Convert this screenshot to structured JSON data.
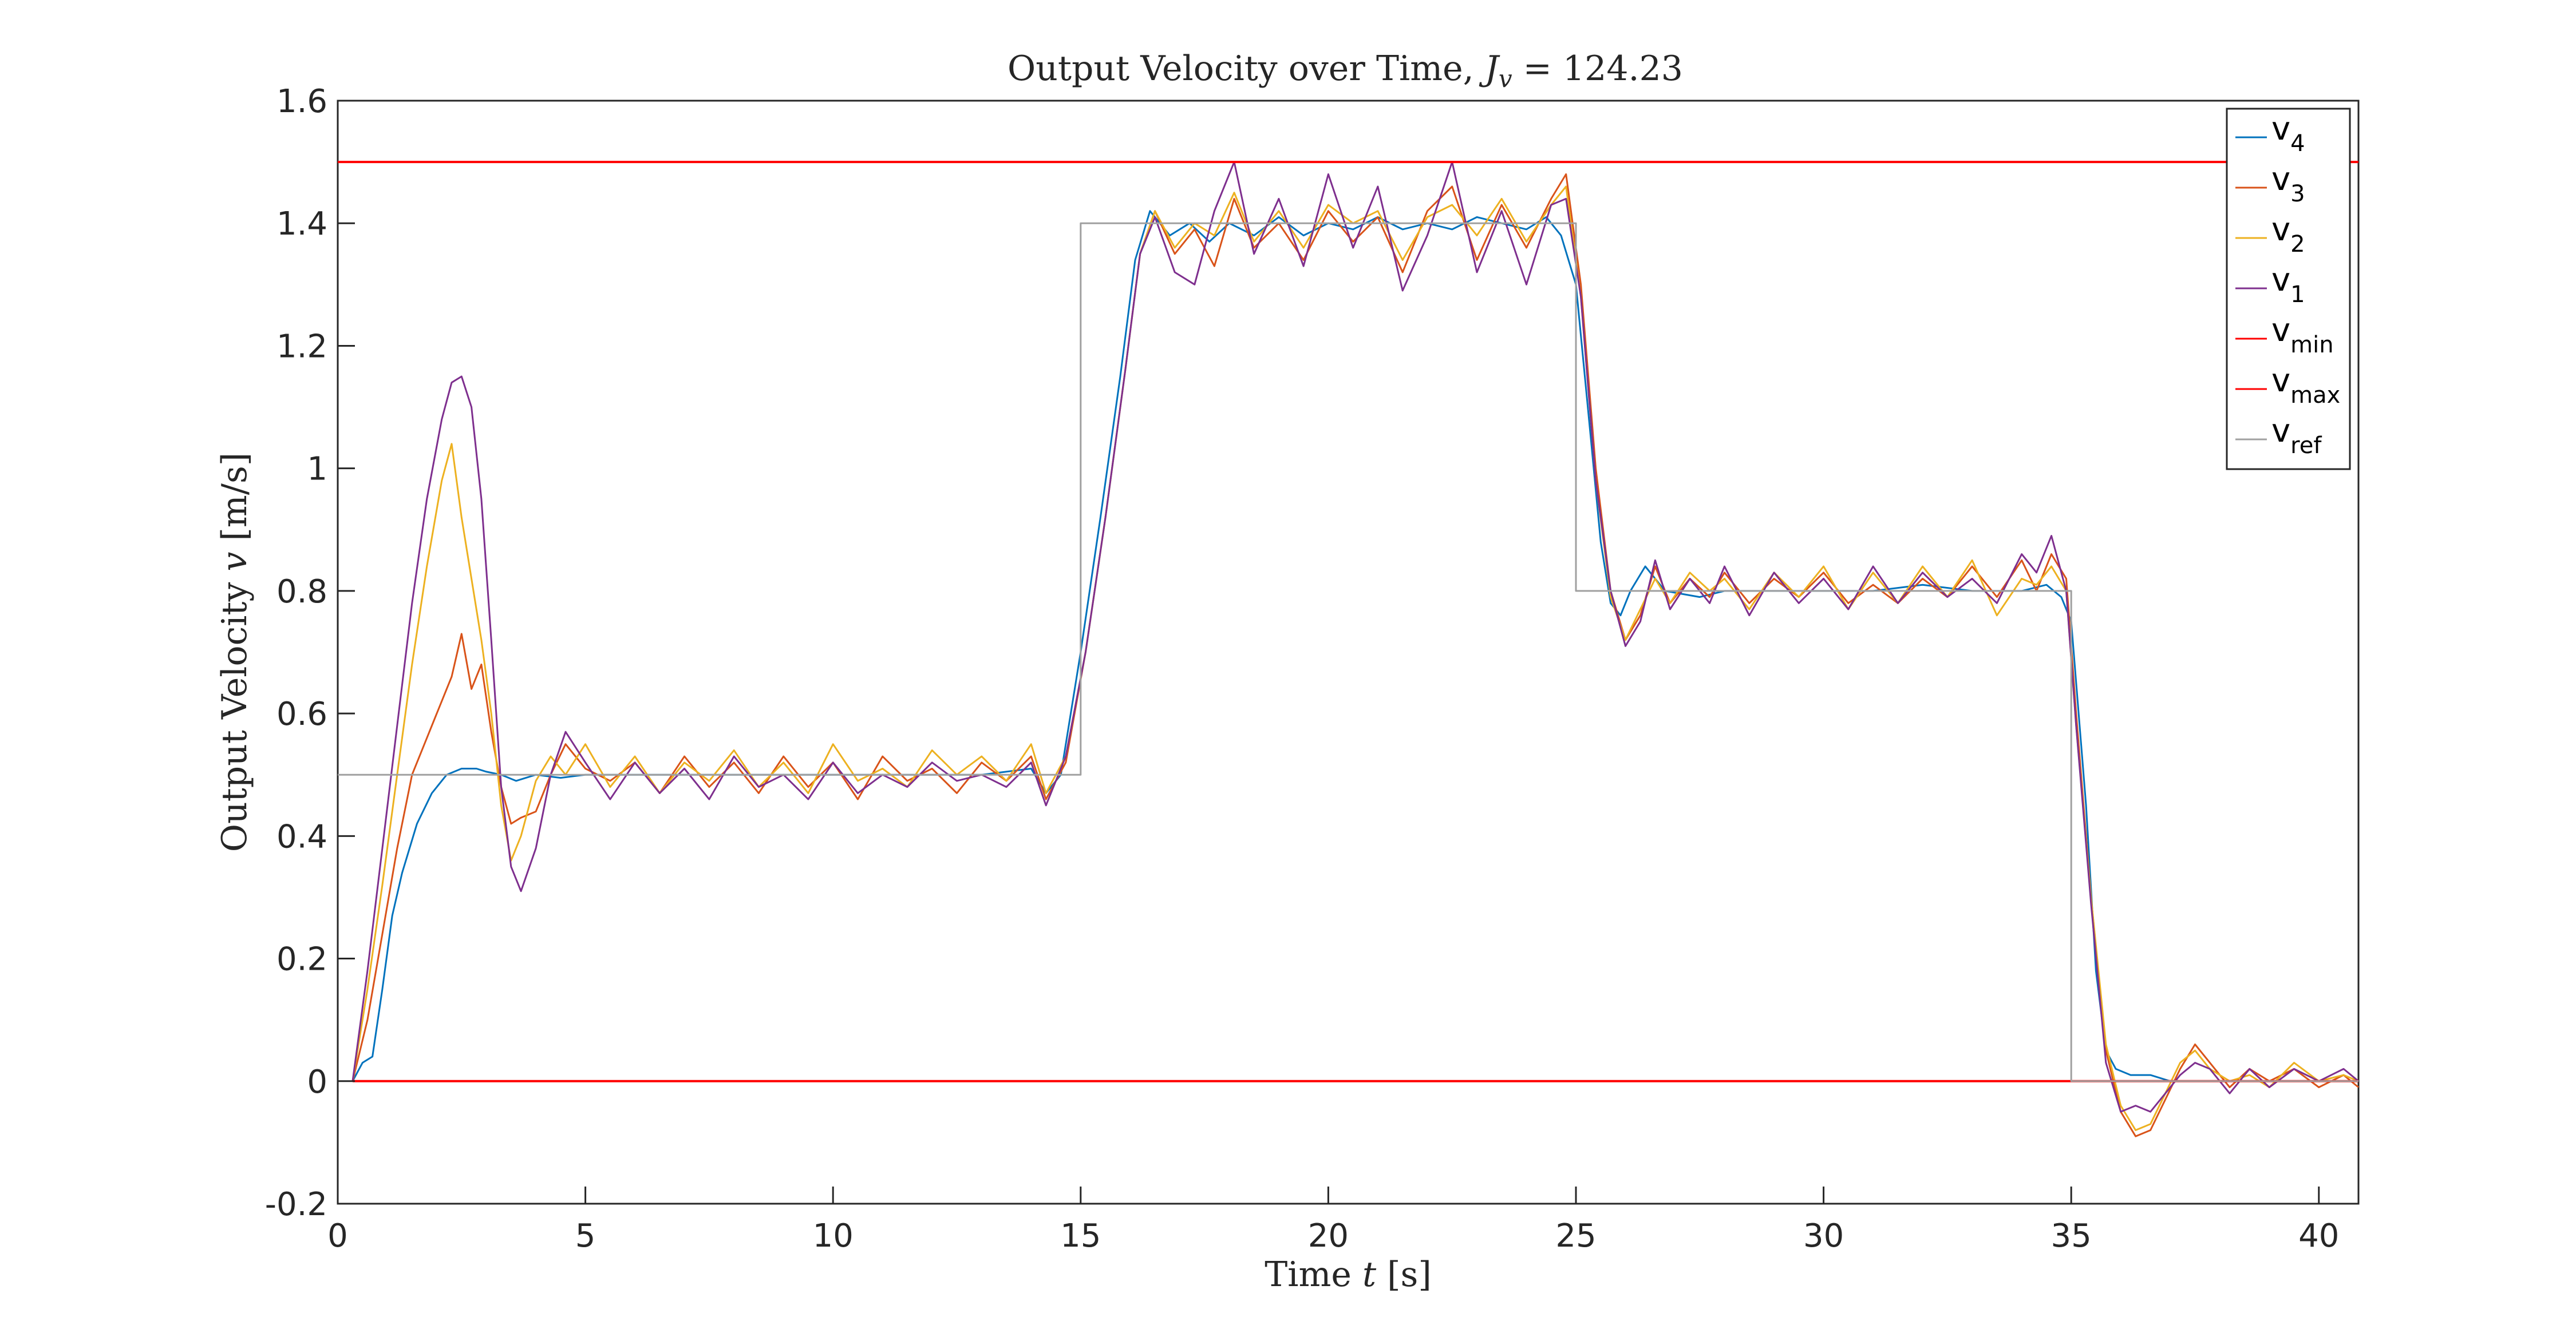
{
  "chart_data": {
    "type": "line",
    "title": {
      "prefix": "Output Velocity over Time, ",
      "var": "J",
      "var_sub": "v",
      "suffix": " = 124.23"
    },
    "xlabel": {
      "prefix": "Time ",
      "var": "t",
      "unit": " [s]"
    },
    "ylabel": {
      "prefix": "Output Velocity ",
      "var": "v",
      "unit": " [m/s]"
    },
    "xlim": [
      0,
      40.8
    ],
    "ylim": [
      -0.2,
      1.6
    ],
    "x_ticks": [
      0,
      5,
      10,
      15,
      20,
      25,
      30,
      35,
      40
    ],
    "x_tick_labels": [
      "0",
      "5",
      "10",
      "15",
      "20",
      "25",
      "30",
      "35",
      "40"
    ],
    "y_ticks": [
      -0.2,
      0,
      0.2,
      0.4,
      0.6,
      0.8,
      1,
      1.2,
      1.4,
      1.6
    ],
    "y_tick_labels": [
      "-0.2",
      "0",
      "0.2",
      "0.4",
      "0.6",
      "0.8",
      "1",
      "1.2",
      "1.4",
      "1.6"
    ],
    "grid": false,
    "legend_position": "top-right",
    "series": [
      {
        "name": "v",
        "sub": "4",
        "color": "#0072BD",
        "x": [
          0.3,
          0.5,
          0.7,
          0.9,
          1.1,
          1.3,
          1.6,
          1.9,
          2.2,
          2.5,
          2.8,
          3.0,
          3.3,
          3.6,
          4.0,
          4.5,
          5.0,
          6,
          7,
          8,
          9,
          10,
          11,
          12,
          13,
          14,
          14.3,
          14.6,
          15.0,
          15.4,
          15.8,
          16.1,
          16.4,
          16.8,
          17.2,
          17.6,
          18,
          18.5,
          19,
          19.5,
          20,
          20.5,
          21,
          21.5,
          22,
          22.5,
          23,
          23.5,
          24,
          24.4,
          24.7,
          25.0,
          25.3,
          25.5,
          25.7,
          25.9,
          26.1,
          26.4,
          26.8,
          27.5,
          28,
          29,
          30,
          31,
          32,
          33,
          34,
          34.5,
          34.8,
          35.0,
          35.3,
          35.5,
          35.7,
          35.9,
          36.2,
          36.6,
          37,
          38,
          39,
          40,
          40.8
        ],
        "y": [
          0,
          0.03,
          0.04,
          0.15,
          0.27,
          0.34,
          0.42,
          0.47,
          0.5,
          0.51,
          0.51,
          0.505,
          0.5,
          0.49,
          0.5,
          0.495,
          0.5,
          0.5,
          0.5,
          0.5,
          0.5,
          0.5,
          0.5,
          0.5,
          0.5,
          0.51,
          0.47,
          0.5,
          0.7,
          0.92,
          1.15,
          1.34,
          1.42,
          1.38,
          1.4,
          1.37,
          1.4,
          1.38,
          1.41,
          1.38,
          1.4,
          1.39,
          1.41,
          1.39,
          1.4,
          1.39,
          1.41,
          1.4,
          1.39,
          1.41,
          1.38,
          1.3,
          1.05,
          0.88,
          0.78,
          0.76,
          0.8,
          0.84,
          0.8,
          0.79,
          0.8,
          0.8,
          0.8,
          0.8,
          0.81,
          0.8,
          0.8,
          0.81,
          0.79,
          0.75,
          0.45,
          0.18,
          0.05,
          0.02,
          0.01,
          0.01,
          0.0,
          0.0,
          0.0,
          0.0,
          0.0
        ]
      },
      {
        "name": "v",
        "sub": "3",
        "color": "#D95319",
        "x": [
          0.3,
          0.6,
          0.9,
          1.2,
          1.5,
          1.8,
          2.0,
          2.3,
          2.5,
          2.7,
          2.9,
          3.1,
          3.3,
          3.5,
          3.7,
          4.0,
          4.3,
          4.6,
          5.0,
          5.5,
          6,
          6.5,
          7,
          7.5,
          8,
          8.5,
          9,
          9.5,
          10,
          10.5,
          11,
          11.5,
          12,
          12.5,
          13,
          13.5,
          14,
          14.3,
          14.7,
          15.1,
          15.5,
          15.9,
          16.2,
          16.5,
          16.9,
          17.3,
          17.7,
          18.1,
          18.5,
          19,
          19.5,
          20,
          20.5,
          21,
          21.5,
          22,
          22.5,
          23,
          23.5,
          24,
          24.5,
          24.8,
          25.1,
          25.4,
          25.7,
          26.0,
          26.3,
          26.6,
          26.9,
          27.3,
          27.7,
          28,
          28.5,
          29,
          29.5,
          30,
          30.5,
          31,
          31.5,
          32,
          32.5,
          33,
          33.5,
          34,
          34.3,
          34.6,
          34.9,
          35.1,
          35.4,
          35.7,
          36.0,
          36.3,
          36.6,
          36.9,
          37.2,
          37.5,
          37.8,
          38.2,
          38.6,
          39,
          39.5,
          40,
          40.5,
          40.8
        ],
        "y": [
          0,
          0.1,
          0.24,
          0.38,
          0.5,
          0.56,
          0.6,
          0.66,
          0.73,
          0.64,
          0.68,
          0.57,
          0.48,
          0.42,
          0.43,
          0.44,
          0.5,
          0.55,
          0.51,
          0.49,
          0.52,
          0.47,
          0.53,
          0.48,
          0.52,
          0.47,
          0.53,
          0.48,
          0.52,
          0.46,
          0.53,
          0.49,
          0.51,
          0.47,
          0.52,
          0.49,
          0.53,
          0.46,
          0.52,
          0.7,
          0.92,
          1.16,
          1.35,
          1.42,
          1.35,
          1.39,
          1.33,
          1.44,
          1.36,
          1.4,
          1.34,
          1.42,
          1.37,
          1.41,
          1.32,
          1.42,
          1.46,
          1.34,
          1.43,
          1.36,
          1.44,
          1.48,
          1.3,
          1.0,
          0.8,
          0.72,
          0.76,
          0.84,
          0.78,
          0.82,
          0.79,
          0.83,
          0.78,
          0.82,
          0.79,
          0.83,
          0.78,
          0.81,
          0.78,
          0.82,
          0.79,
          0.84,
          0.79,
          0.85,
          0.8,
          0.86,
          0.82,
          0.6,
          0.3,
          0.05,
          -0.05,
          -0.09,
          -0.08,
          -0.03,
          0.02,
          0.06,
          0.03,
          -0.01,
          0.02,
          0.0,
          0.02,
          -0.01,
          0.01,
          -0.01
        ]
      },
      {
        "name": "v",
        "sub": "2",
        "color": "#EDB120",
        "x": [
          0.3,
          0.6,
          0.9,
          1.2,
          1.5,
          1.8,
          2.1,
          2.3,
          2.5,
          2.7,
          2.9,
          3.1,
          3.3,
          3.5,
          3.7,
          4.0,
          4.3,
          4.6,
          5.0,
          5.5,
          6,
          6.5,
          7,
          7.5,
          8,
          8.5,
          9,
          9.5,
          10,
          10.5,
          11,
          11.5,
          12,
          12.5,
          13,
          13.5,
          14,
          14.3,
          14.7,
          15.1,
          15.5,
          15.9,
          16.2,
          16.5,
          16.9,
          17.3,
          17.7,
          18.1,
          18.5,
          19,
          19.5,
          20,
          20.5,
          21,
          21.5,
          22,
          22.5,
          23,
          23.5,
          24,
          24.5,
          24.8,
          25.1,
          25.4,
          25.7,
          26.0,
          26.3,
          26.6,
          26.9,
          27.3,
          27.7,
          28,
          28.5,
          29,
          29.5,
          30,
          30.5,
          31,
          31.5,
          32,
          32.5,
          33,
          33.5,
          34,
          34.3,
          34.6,
          34.9,
          35.1,
          35.4,
          35.7,
          36.0,
          36.3,
          36.6,
          36.9,
          37.2,
          37.5,
          37.8,
          38.2,
          38.6,
          39,
          39.5,
          40,
          40.5,
          40.8
        ],
        "y": [
          0,
          0.15,
          0.32,
          0.5,
          0.68,
          0.84,
          0.98,
          1.04,
          0.92,
          0.82,
          0.72,
          0.6,
          0.45,
          0.36,
          0.4,
          0.49,
          0.53,
          0.5,
          0.55,
          0.48,
          0.53,
          0.47,
          0.52,
          0.49,
          0.54,
          0.48,
          0.52,
          0.47,
          0.55,
          0.49,
          0.51,
          0.48,
          0.54,
          0.5,
          0.53,
          0.49,
          0.55,
          0.47,
          0.53,
          0.7,
          0.92,
          1.16,
          1.35,
          1.42,
          1.36,
          1.4,
          1.38,
          1.45,
          1.37,
          1.42,
          1.36,
          1.43,
          1.4,
          1.42,
          1.34,
          1.41,
          1.43,
          1.38,
          1.44,
          1.37,
          1.43,
          1.46,
          1.28,
          0.98,
          0.79,
          0.72,
          0.77,
          0.82,
          0.78,
          0.83,
          0.8,
          0.82,
          0.77,
          0.83,
          0.79,
          0.84,
          0.77,
          0.83,
          0.78,
          0.84,
          0.79,
          0.85,
          0.76,
          0.82,
          0.81,
          0.84,
          0.8,
          0.58,
          0.3,
          0.06,
          -0.04,
          -0.08,
          -0.07,
          -0.02,
          0.03,
          0.05,
          0.02,
          0.0,
          0.01,
          -0.01,
          0.03,
          0.0,
          0.01,
          0.0
        ]
      },
      {
        "name": "v",
        "sub": "1",
        "color": "#7E2F8E",
        "x": [
          0.3,
          0.6,
          0.9,
          1.2,
          1.5,
          1.8,
          2.1,
          2.3,
          2.5,
          2.7,
          2.9,
          3.1,
          3.3,
          3.5,
          3.7,
          4.0,
          4.3,
          4.6,
          5.0,
          5.5,
          6,
          6.5,
          7,
          7.5,
          8,
          8.5,
          9,
          9.5,
          10,
          10.5,
          11,
          11.5,
          12,
          12.5,
          13,
          13.5,
          14,
          14.3,
          14.7,
          15.1,
          15.5,
          15.9,
          16.2,
          16.5,
          16.9,
          17.3,
          17.7,
          18.1,
          18.5,
          19,
          19.5,
          20,
          20.5,
          21,
          21.5,
          22,
          22.5,
          23,
          23.5,
          24,
          24.5,
          24.8,
          25.1,
          25.4,
          25.7,
          26.0,
          26.3,
          26.6,
          26.9,
          27.3,
          27.7,
          28,
          28.5,
          29,
          29.5,
          30,
          30.5,
          31,
          31.5,
          32,
          32.5,
          33,
          33.5,
          34,
          34.3,
          34.6,
          34.9,
          35.1,
          35.4,
          35.7,
          36.0,
          36.3,
          36.6,
          36.9,
          37.2,
          37.5,
          37.8,
          38.2,
          38.6,
          39,
          39.5,
          40,
          40.5,
          40.8
        ],
        "y": [
          0,
          0.18,
          0.38,
          0.58,
          0.78,
          0.95,
          1.08,
          1.14,
          1.15,
          1.1,
          0.95,
          0.72,
          0.48,
          0.35,
          0.31,
          0.38,
          0.5,
          0.57,
          0.52,
          0.46,
          0.52,
          0.47,
          0.51,
          0.46,
          0.53,
          0.48,
          0.5,
          0.46,
          0.52,
          0.47,
          0.5,
          0.48,
          0.52,
          0.49,
          0.5,
          0.48,
          0.52,
          0.45,
          0.53,
          0.7,
          0.92,
          1.16,
          1.35,
          1.41,
          1.32,
          1.3,
          1.42,
          1.5,
          1.35,
          1.44,
          1.33,
          1.48,
          1.36,
          1.46,
          1.29,
          1.38,
          1.5,
          1.32,
          1.42,
          1.3,
          1.43,
          1.44,
          1.28,
          0.98,
          0.8,
          0.71,
          0.75,
          0.85,
          0.77,
          0.82,
          0.78,
          0.84,
          0.76,
          0.83,
          0.78,
          0.82,
          0.77,
          0.84,
          0.78,
          0.83,
          0.79,
          0.82,
          0.78,
          0.86,
          0.83,
          0.89,
          0.8,
          0.58,
          0.29,
          0.03,
          -0.05,
          -0.04,
          -0.05,
          -0.02,
          0.01,
          0.03,
          0.02,
          -0.02,
          0.02,
          -0.01,
          0.02,
          0.0,
          0.02,
          0.0
        ]
      },
      {
        "name": "v",
        "sub": "min",
        "color": "#FF0000",
        "x": [
          0.3,
          40.8
        ],
        "y": [
          0,
          0
        ]
      },
      {
        "name": "v",
        "sub": "max",
        "color": "#FF0000",
        "x": [
          0,
          40.8
        ],
        "y": [
          1.5,
          1.5
        ]
      },
      {
        "name": "v",
        "sub": "ref",
        "color": "#A0A0A0",
        "x": [
          0,
          15,
          15,
          25,
          25,
          35,
          35,
          40.8
        ],
        "y": [
          0.5,
          0.5,
          1.4,
          1.4,
          0.8,
          0.8,
          0,
          0
        ]
      }
    ]
  }
}
